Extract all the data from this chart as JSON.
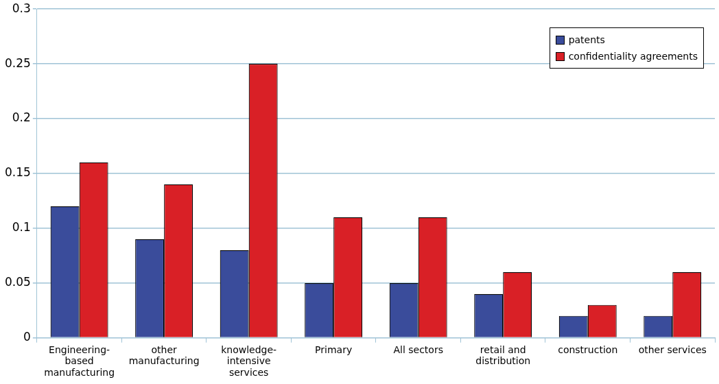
{
  "chart_data": {
    "type": "bar",
    "categories": [
      "Engineering-based manufacturing",
      "other manufacturing",
      "knowledge-intensive services",
      "Primary",
      "All sectors",
      "retail and distribution",
      "construction",
      "other services"
    ],
    "series": [
      {
        "name": "patents",
        "color": "#3a4c9b",
        "values": [
          0.12,
          0.09,
          0.08,
          0.05,
          0.05,
          0.04,
          0.02,
          0.02
        ]
      },
      {
        "name": "confidentiality agreements",
        "color": "#d92026",
        "values": [
          0.16,
          0.14,
          0.25,
          0.11,
          0.11,
          0.06,
          0.03,
          0.06
        ]
      }
    ],
    "ylim": [
      0,
      0.3
    ],
    "yticks": [
      0,
      0.05,
      0.1,
      0.15,
      0.2,
      0.25,
      0.3
    ],
    "grid": "y",
    "legend": "top right"
  }
}
